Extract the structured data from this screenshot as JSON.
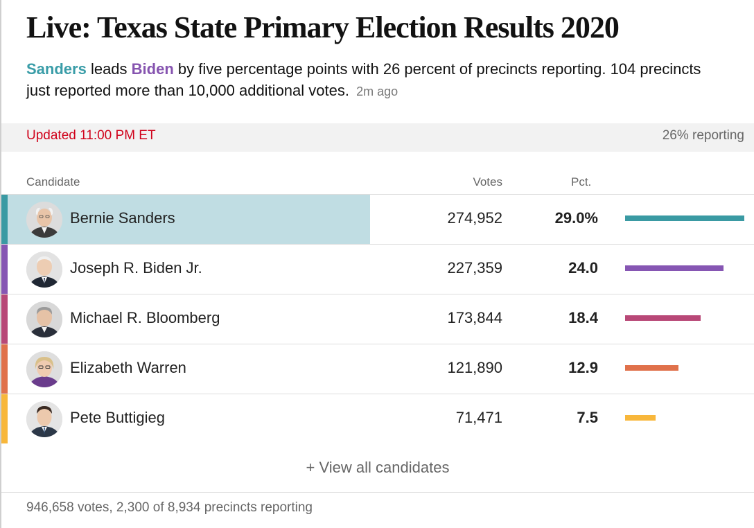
{
  "headline": "Live: Texas State Primary Election Results 2020",
  "summary": {
    "leader": "Sanders",
    "leads_word": " leads ",
    "runner_up": "Biden",
    "text": " by five percentage points with 26 percent of precincts reporting. 104 precincts just reported more than 10,000 additional votes.",
    "time_ago": "2m ago"
  },
  "status": {
    "updated": "Updated 11:00 PM ET",
    "reporting": "26% reporting"
  },
  "table": {
    "headers": {
      "candidate": "Candidate",
      "votes": "Votes",
      "pct": "Pct."
    },
    "rows": [
      {
        "name": "Bernie Sanders",
        "votes": "274,952",
        "pct": "29.0%",
        "pct_value": 29.0,
        "color": "#3a9aa3",
        "avatar": "bernie-sanders-icon",
        "leader": true
      },
      {
        "name": "Joseph R. Biden Jr.",
        "votes": "227,359",
        "pct": "24.0",
        "pct_value": 24.0,
        "color": "#8656b3",
        "avatar": "joe-biden-icon",
        "leader": false
      },
      {
        "name": "Michael R. Bloomberg",
        "votes": "173,844",
        "pct": "18.4",
        "pct_value": 18.4,
        "color": "#b84877",
        "avatar": "michael-bloomberg-icon",
        "leader": false
      },
      {
        "name": "Elizabeth Warren",
        "votes": "121,890",
        "pct": "12.9",
        "pct_value": 12.9,
        "color": "#e0714b",
        "avatar": "elizabeth-warren-icon",
        "leader": false
      },
      {
        "name": "Pete Buttigieg",
        "votes": "71,471",
        "pct": "7.5",
        "pct_value": 7.5,
        "color": "#f8b73b",
        "avatar": "pete-buttigieg-icon",
        "leader": false
      }
    ],
    "max_pct": 29.0
  },
  "view_all": "+ View all candidates",
  "footer": "946,658 votes, 2,300 of 8,934 precincts reporting",
  "colors": {
    "sanders": "#3a9da8",
    "biden": "#8654b0",
    "updated_red": "#d0021b",
    "leader_highlight": "#c0dde3"
  }
}
